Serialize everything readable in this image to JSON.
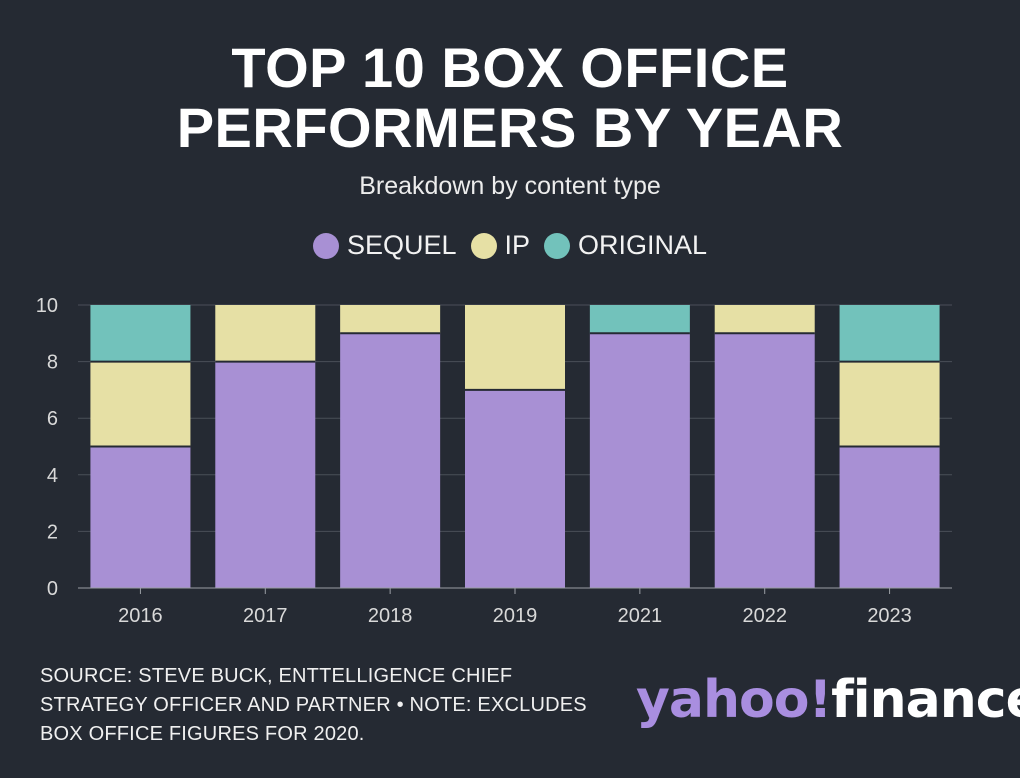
{
  "header": {
    "title_line1": "TOP 10 BOX OFFICE",
    "title_line2": "PERFORMERS BY YEAR",
    "subtitle": "Breakdown by content type"
  },
  "legend": [
    {
      "label": "SEQUEL",
      "color": "#a890d4"
    },
    {
      "label": "IP",
      "color": "#e6e0a5"
    },
    {
      "label": "ORIGINAL",
      "color": "#72c2bb"
    }
  ],
  "chart_data": {
    "type": "bar",
    "stacked": true,
    "title": "TOP 10 BOX OFFICE PERFORMERS BY YEAR",
    "subtitle": "Breakdown by content type",
    "categories": [
      "2016",
      "2017",
      "2018",
      "2019",
      "2021",
      "2022",
      "2023"
    ],
    "series": [
      {
        "name": "SEQUEL",
        "color": "#a890d4",
        "values": [
          5,
          8,
          9,
          7,
          9,
          9,
          5
        ]
      },
      {
        "name": "IP",
        "color": "#e6e0a5",
        "values": [
          3,
          2,
          1,
          3,
          0,
          1,
          3
        ]
      },
      {
        "name": "ORIGINAL",
        "color": "#72c2bb",
        "values": [
          2,
          0,
          0,
          0,
          1,
          0,
          2
        ]
      }
    ],
    "ylim": [
      0,
      10
    ],
    "yticks": [
      0,
      2,
      4,
      6,
      8,
      10
    ],
    "grid": true,
    "legend_position": "top-center",
    "xlabel": "",
    "ylabel": ""
  },
  "footer": {
    "note_line1": "SOURCE: STEVE BUCK, ENTTELLIGENCE CHIEF",
    "note_line2": "STRATEGY OFFICER AND PARTNER • NOTE: EXCLUDES",
    "note_line3": "BOX OFFICE FIGURES FOR 2020.",
    "brand_part1": "yahoo!",
    "brand_part2": "finance"
  }
}
